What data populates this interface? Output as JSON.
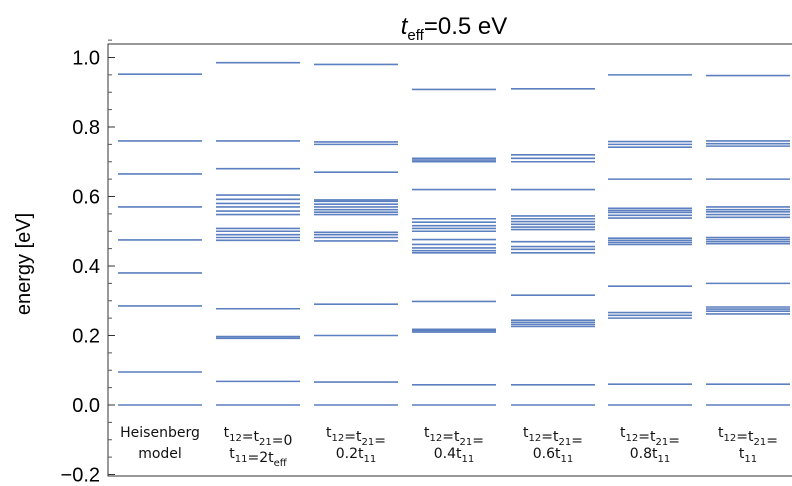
{
  "chart_data": {
    "type": "energy-level-diagram",
    "title_parts": {
      "var": "t",
      "sub": "eff",
      "rest": "=0.5 eV"
    },
    "ylabel": "energy [eV]",
    "ylim": [
      -0.2,
      1.05
    ],
    "yticks": [
      "1.0",
      "0.8",
      "0.6",
      "0.4",
      "0.2",
      "0.0",
      "−0.2"
    ],
    "ytick_values": [
      1.0,
      0.8,
      0.6,
      0.4,
      0.2,
      0.0,
      -0.2
    ],
    "line_color": "#5b7fbf",
    "columns": [
      {
        "label_lines": [
          "Heisenberg",
          "model"
        ],
        "levels": [
          0.0,
          0.095,
          0.285,
          0.38,
          0.475,
          0.57,
          0.665,
          0.76,
          0.952
        ]
      },
      {
        "label_lines": [
          "t12=t21=0",
          "t11=2teff"
        ],
        "levels": [
          0.0,
          0.068,
          0.192,
          0.197,
          0.277,
          0.474,
          0.482,
          0.49,
          0.5,
          0.508,
          0.548,
          0.558,
          0.57,
          0.58,
          0.592,
          0.604,
          0.68,
          0.76,
          0.985
        ]
      },
      {
        "label_lines": [
          "t12=t21=",
          "0.2t11"
        ],
        "levels": [
          0.0,
          0.066,
          0.2,
          0.29,
          0.472,
          0.482,
          0.49,
          0.497,
          0.548,
          0.555,
          0.562,
          0.57,
          0.578,
          0.586,
          0.59,
          0.67,
          0.75,
          0.757,
          0.98
        ]
      },
      {
        "label_lines": [
          "t12=t21=",
          "0.4t11"
        ],
        "levels": [
          0.0,
          0.058,
          0.21,
          0.214,
          0.218,
          0.298,
          0.438,
          0.444,
          0.452,
          0.462,
          0.476,
          0.5,
          0.508,
          0.516,
          0.526,
          0.536,
          0.62,
          0.7,
          0.705,
          0.71,
          0.908
        ]
      },
      {
        "label_lines": [
          "t12=t21=",
          "0.6t11"
        ],
        "levels": [
          0.0,
          0.058,
          0.226,
          0.232,
          0.238,
          0.244,
          0.316,
          0.438,
          0.448,
          0.456,
          0.47,
          0.505,
          0.512,
          0.52,
          0.528,
          0.536,
          0.544,
          0.62,
          0.7,
          0.71,
          0.72,
          0.91
        ]
      },
      {
        "label_lines": [
          "t12=t21=",
          "0.8t11"
        ],
        "levels": [
          0.0,
          0.06,
          0.25,
          0.258,
          0.266,
          0.342,
          0.462,
          0.468,
          0.474,
          0.48,
          0.538,
          0.546,
          0.554,
          0.56,
          0.566,
          0.65,
          0.742,
          0.75,
          0.758,
          0.95
        ]
      },
      {
        "label_lines": [
          "t12=t21=",
          "t11"
        ],
        "levels": [
          0.0,
          0.06,
          0.262,
          0.27,
          0.276,
          0.282,
          0.35,
          0.464,
          0.47,
          0.476,
          0.482,
          0.54,
          0.548,
          0.556,
          0.562,
          0.57,
          0.65,
          0.745,
          0.752,
          0.76,
          0.948
        ]
      }
    ]
  }
}
